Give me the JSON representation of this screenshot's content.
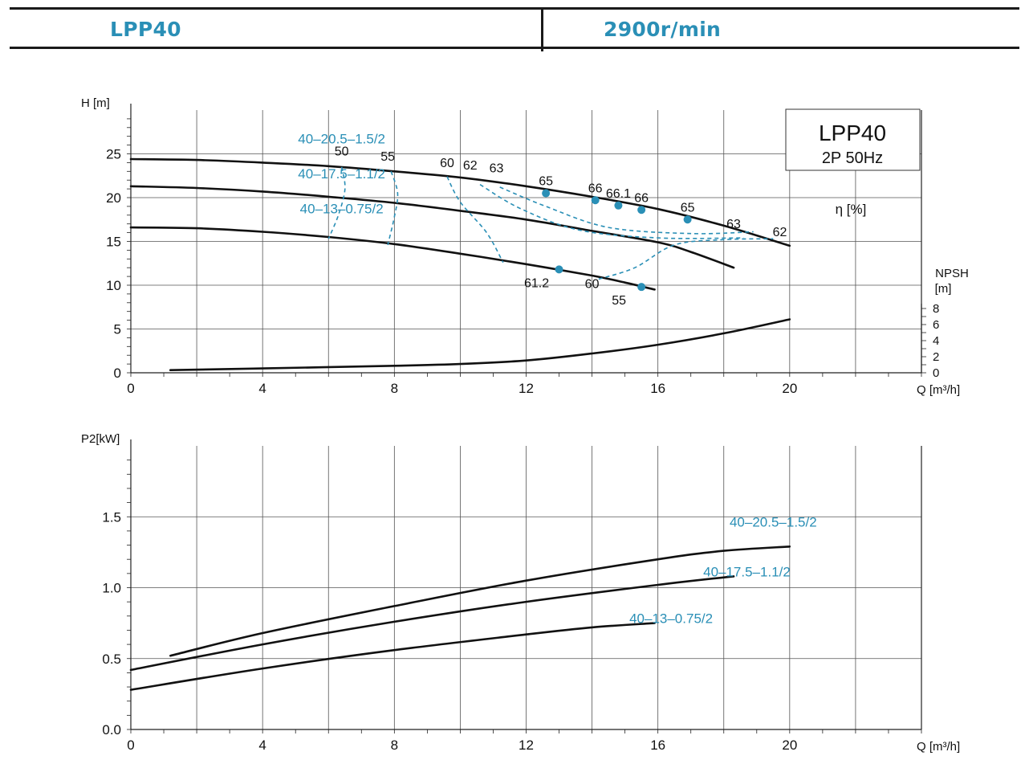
{
  "header": {
    "model": "LPP40",
    "speed": "2900r/min"
  },
  "colors": {
    "accent": "#2a8fb6",
    "curve": "#111111",
    "grid": "#555555"
  },
  "chart_data": [
    {
      "type": "line",
      "id": "head",
      "ylabel": "H [m]",
      "xlabel": "Q [m³/h]",
      "xlim": [
        0,
        24
      ],
      "ylim": [
        0,
        30
      ],
      "x_ticks": [
        0,
        4,
        8,
        12,
        16,
        20
      ],
      "y_ticks": [
        0,
        5,
        10,
        15,
        20,
        25
      ],
      "grid": true,
      "legend_box": {
        "title": "LPP40",
        "subtitle": "2P  50Hz",
        "position": "top-right"
      },
      "eta_label": "η [%]",
      "npsh_axis": {
        "label": "NPSH",
        "unit": "[m]",
        "ticks": [
          0,
          2,
          4,
          6,
          8
        ]
      },
      "series": [
        {
          "name": "40–20.5–1.5/2",
          "label_at": [
            6.4,
            26.2
          ],
          "points": [
            [
              0,
              24.4
            ],
            [
              2,
              24.3
            ],
            [
              4,
              24.0
            ],
            [
              6,
              23.6
            ],
            [
              8,
              23.0
            ],
            [
              10,
              22.3
            ],
            [
              12,
              21.3
            ],
            [
              14,
              20.1
            ],
            [
              16,
              18.7
            ],
            [
              18,
              16.8
            ],
            [
              20,
              14.5
            ]
          ]
        },
        {
          "name": "40–17.5–1.1/2",
          "label_at": [
            6.4,
            22.2
          ],
          "points": [
            [
              0,
              21.3
            ],
            [
              2,
              21.1
            ],
            [
              4,
              20.7
            ],
            [
              6,
              20.1
            ],
            [
              8,
              19.4
            ],
            [
              10,
              18.5
            ],
            [
              12,
              17.5
            ],
            [
              14,
              16.2
            ],
            [
              16,
              14.9
            ],
            [
              17,
              13.8
            ],
            [
              18.3,
              12.0
            ]
          ]
        },
        {
          "name": "40–13–0.75/2",
          "label_at": [
            6.4,
            18.2
          ],
          "points": [
            [
              0,
              16.6
            ],
            [
              2,
              16.5
            ],
            [
              4,
              16.1
            ],
            [
              6,
              15.5
            ],
            [
              8,
              14.7
            ],
            [
              10,
              13.6
            ],
            [
              12,
              12.4
            ],
            [
              14,
              11.1
            ],
            [
              15,
              10.3
            ],
            [
              15.9,
              9.5
            ]
          ]
        },
        {
          "name": "NPSH",
          "points": [
            [
              1.2,
              0.3
            ],
            [
              4,
              0.5
            ],
            [
              8,
              0.8
            ],
            [
              10,
              1.0
            ],
            [
              12,
              1.4
            ],
            [
              14,
              2.2
            ],
            [
              16,
              3.2
            ],
            [
              18,
              4.5
            ],
            [
              20,
              6.1
            ]
          ]
        }
      ],
      "efficiency_dots": [
        {
          "label": "65",
          "point": [
            12.6,
            20.5
          ]
        },
        {
          "label": "66",
          "point": [
            14.1,
            19.7
          ]
        },
        {
          "label": "66.1",
          "point": [
            14.8,
            19.1
          ]
        },
        {
          "label": "66",
          "point": [
            15.5,
            18.6
          ]
        },
        {
          "label": "65",
          "point": [
            16.9,
            17.5
          ]
        },
        {
          "label": "61.2",
          "point": [
            13.0,
            11.8
          ]
        },
        {
          "label": "55",
          "point": [
            15.5,
            9.8
          ]
        }
      ],
      "efficiency_labels": [
        {
          "label": "50",
          "at": [
            6.4,
            24.8
          ]
        },
        {
          "label": "55",
          "at": [
            7.8,
            24.2
          ]
        },
        {
          "label": "60",
          "at": [
            9.6,
            23.5
          ]
        },
        {
          "label": "62",
          "at": [
            10.3,
            23.2
          ]
        },
        {
          "label": "63",
          "at": [
            11.1,
            22.9
          ]
        },
        {
          "label": "63",
          "at": [
            18.3,
            16.5
          ]
        },
        {
          "label": "62",
          "at": [
            19.7,
            15.6
          ]
        },
        {
          "label": "60",
          "at": [
            14.0,
            9.7
          ]
        }
      ],
      "efficiency_contours": [
        {
          "value": "50",
          "points": [
            [
              6.4,
              23.5
            ],
            [
              6.5,
              21.0
            ],
            [
              6.3,
              18.0
            ],
            [
              6.0,
              15.3
            ]
          ]
        },
        {
          "value": "55",
          "points": [
            [
              7.9,
              23.0
            ],
            [
              8.1,
              20.5
            ],
            [
              8.0,
              17.8
            ],
            [
              7.8,
              14.6
            ]
          ]
        },
        {
          "value": "60",
          "points": [
            [
              9.6,
              22.4
            ],
            [
              10.0,
              19.5
            ],
            [
              10.8,
              16.0
            ],
            [
              11.3,
              12.6
            ]
          ]
        },
        {
          "value": "62",
          "points": [
            [
              10.6,
              21.5
            ],
            [
              11.8,
              18.8
            ],
            [
              13.6,
              16.3
            ],
            [
              16.0,
              15.4
            ],
            [
              18.6,
              15.4
            ]
          ]
        },
        {
          "value": "63",
          "points": [
            [
              11.2,
              21.2
            ],
            [
              12.6,
              19.0
            ],
            [
              14.5,
              16.6
            ],
            [
              17.0,
              15.9
            ],
            [
              18.9,
              16.1
            ]
          ]
        },
        {
          "value": "60b",
          "points": [
            [
              14.2,
              10.7
            ],
            [
              15.3,
              12.0
            ],
            [
              16.5,
              14.6
            ],
            [
              18.0,
              15.2
            ],
            [
              19.5,
              15.3
            ]
          ]
        }
      ]
    },
    {
      "type": "line",
      "id": "power",
      "ylabel": "P2[kW]",
      "xlabel": "Q [m³/h]",
      "xlim": [
        0,
        24
      ],
      "ylim": [
        0,
        2.0
      ],
      "x_ticks": [
        0,
        4,
        8,
        12,
        16,
        20
      ],
      "y_ticks": [
        0.0,
        0.5,
        1.0,
        1.5
      ],
      "y_tick_labels": [
        "0.0",
        "0.5",
        "1.0",
        "1.5"
      ],
      "grid": true,
      "series": [
        {
          "name": "40–20.5–1.5/2",
          "label_at": [
            19.5,
            1.43
          ],
          "points": [
            [
              1.2,
              0.52
            ],
            [
              4,
              0.68
            ],
            [
              8,
              0.87
            ],
            [
              12,
              1.05
            ],
            [
              16,
              1.2
            ],
            [
              18,
              1.26
            ],
            [
              20,
              1.29
            ]
          ]
        },
        {
          "name": "40–17.5–1.1/2",
          "label_at": [
            18.7,
            1.08
          ],
          "points": [
            [
              0,
              0.42
            ],
            [
              4,
              0.6
            ],
            [
              8,
              0.76
            ],
            [
              12,
              0.9
            ],
            [
              16,
              1.02
            ],
            [
              18.3,
              1.08
            ]
          ]
        },
        {
          "name": "40–13–0.75/2",
          "label_at": [
            16.4,
            0.75
          ],
          "points": [
            [
              0,
              0.28
            ],
            [
              4,
              0.43
            ],
            [
              8,
              0.56
            ],
            [
              12,
              0.67
            ],
            [
              14,
              0.72
            ],
            [
              15.9,
              0.75
            ]
          ]
        }
      ]
    }
  ]
}
